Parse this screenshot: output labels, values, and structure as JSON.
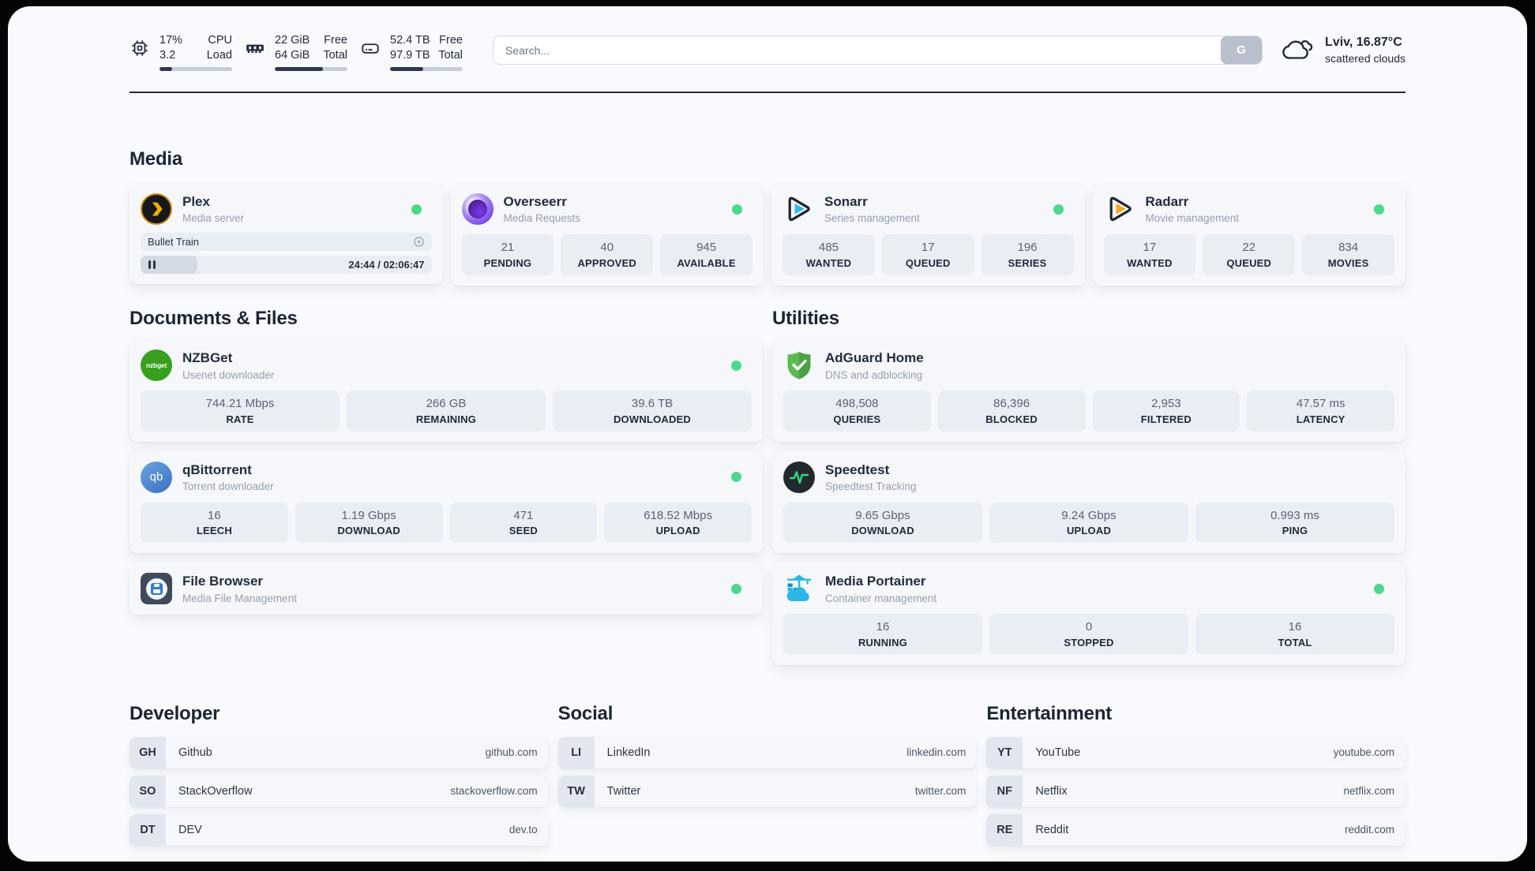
{
  "topbar": {
    "cpu": {
      "value1": "17%",
      "value2": "3.2",
      "label1": "CPU",
      "label2": "Load",
      "progress_pct": 17
    },
    "memory": {
      "value1": "22 GiB",
      "value2": "64 GiB",
      "label1": "Free",
      "label2": "Total",
      "progress_pct": 66
    },
    "disk": {
      "value1": "52.4 TB",
      "value2": "97.9 TB",
      "label1": "Free",
      "label2": "Total",
      "progress_pct": 46
    },
    "search": {
      "placeholder": "Search...",
      "button_label": "G"
    },
    "weather": {
      "location_temp": "Lviv, 16.87°C",
      "condition": "scattered clouds"
    }
  },
  "colors": {
    "status_online": "#4cd98c",
    "progress_fill": "#2e3950"
  },
  "sections": {
    "media": {
      "title": "Media",
      "plex": {
        "name": "Plex",
        "subtitle": "Media server",
        "now_playing": "Bullet Train",
        "time_display": "24:44 / 02:06:47",
        "progress_pct": 19.6
      },
      "overseerr": {
        "name": "Overseerr",
        "subtitle": "Media Requests",
        "stats": [
          {
            "value": "21",
            "label": "PENDING"
          },
          {
            "value": "40",
            "label": "APPROVED"
          },
          {
            "value": "945",
            "label": "AVAILABLE"
          }
        ]
      },
      "sonarr": {
        "name": "Sonarr",
        "subtitle": "Series management",
        "stats": [
          {
            "value": "485",
            "label": "WANTED"
          },
          {
            "value": "17",
            "label": "QUEUED"
          },
          {
            "value": "196",
            "label": "SERIES"
          }
        ]
      },
      "radarr": {
        "name": "Radarr",
        "subtitle": "Movie management",
        "stats": [
          {
            "value": "17",
            "label": "WANTED"
          },
          {
            "value": "22",
            "label": "QUEUED"
          },
          {
            "value": "834",
            "label": "MOVIES"
          }
        ]
      }
    },
    "documents": {
      "title": "Documents & Files",
      "nzbget": {
        "name": "NZBGet",
        "subtitle": "Usenet downloader",
        "icon_text": "nzbget",
        "stats": [
          {
            "value": "744.21 Mbps",
            "label": "RATE"
          },
          {
            "value": "266 GB",
            "label": "REMAINING"
          },
          {
            "value": "39.6 TB",
            "label": "DOWNLOADED"
          }
        ]
      },
      "qbittorrent": {
        "name": "qBittorrent",
        "subtitle": "Torrent downloader",
        "icon_text": "qb",
        "stats": [
          {
            "value": "16",
            "label": "LEECH"
          },
          {
            "value": "1.19 Gbps",
            "label": "DOWNLOAD"
          },
          {
            "value": "471",
            "label": "SEED"
          },
          {
            "value": "618.52 Mbps",
            "label": "UPLOAD"
          }
        ]
      },
      "filebrowser": {
        "name": "File Browser",
        "subtitle": "Media File Management"
      }
    },
    "utilities": {
      "title": "Utilities",
      "adguard": {
        "name": "AdGuard Home",
        "subtitle": "DNS and adblocking",
        "stats": [
          {
            "value": "498,508",
            "label": "QUERIES"
          },
          {
            "value": "86,396",
            "label": "BLOCKED"
          },
          {
            "value": "2,953",
            "label": "FILTERED"
          },
          {
            "value": "47.57 ms",
            "label": "LATENCY"
          }
        ]
      },
      "speedtest": {
        "name": "Speedtest",
        "subtitle": "Speedtest Tracking",
        "stats": [
          {
            "value": "9.65 Gbps",
            "label": "DOWNLOAD"
          },
          {
            "value": "9.24 Gbps",
            "label": "UPLOAD"
          },
          {
            "value": "0.993 ms",
            "label": "PING"
          }
        ]
      },
      "portainer": {
        "name": "Media Portainer",
        "subtitle": "Container management",
        "stats": [
          {
            "value": "16",
            "label": "RUNNING"
          },
          {
            "value": "0",
            "label": "STOPPED"
          },
          {
            "value": "16",
            "label": "TOTAL"
          }
        ]
      }
    },
    "developer": {
      "title": "Developer",
      "links": [
        {
          "abbr": "GH",
          "name": "Github",
          "url": "github.com"
        },
        {
          "abbr": "SO",
          "name": "StackOverflow",
          "url": "stackoverflow.com"
        },
        {
          "abbr": "DT",
          "name": "DEV",
          "url": "dev.to"
        }
      ]
    },
    "social": {
      "title": "Social",
      "links": [
        {
          "abbr": "LI",
          "name": "LinkedIn",
          "url": "linkedin.com"
        },
        {
          "abbr": "TW",
          "name": "Twitter",
          "url": "twitter.com"
        }
      ]
    },
    "entertainment": {
      "title": "Entertainment",
      "links": [
        {
          "abbr": "YT",
          "name": "YouTube",
          "url": "youtube.com"
        },
        {
          "abbr": "NF",
          "name": "Netflix",
          "url": "netflix.com"
        },
        {
          "abbr": "RE",
          "name": "Reddit",
          "url": "reddit.com"
        }
      ]
    }
  }
}
